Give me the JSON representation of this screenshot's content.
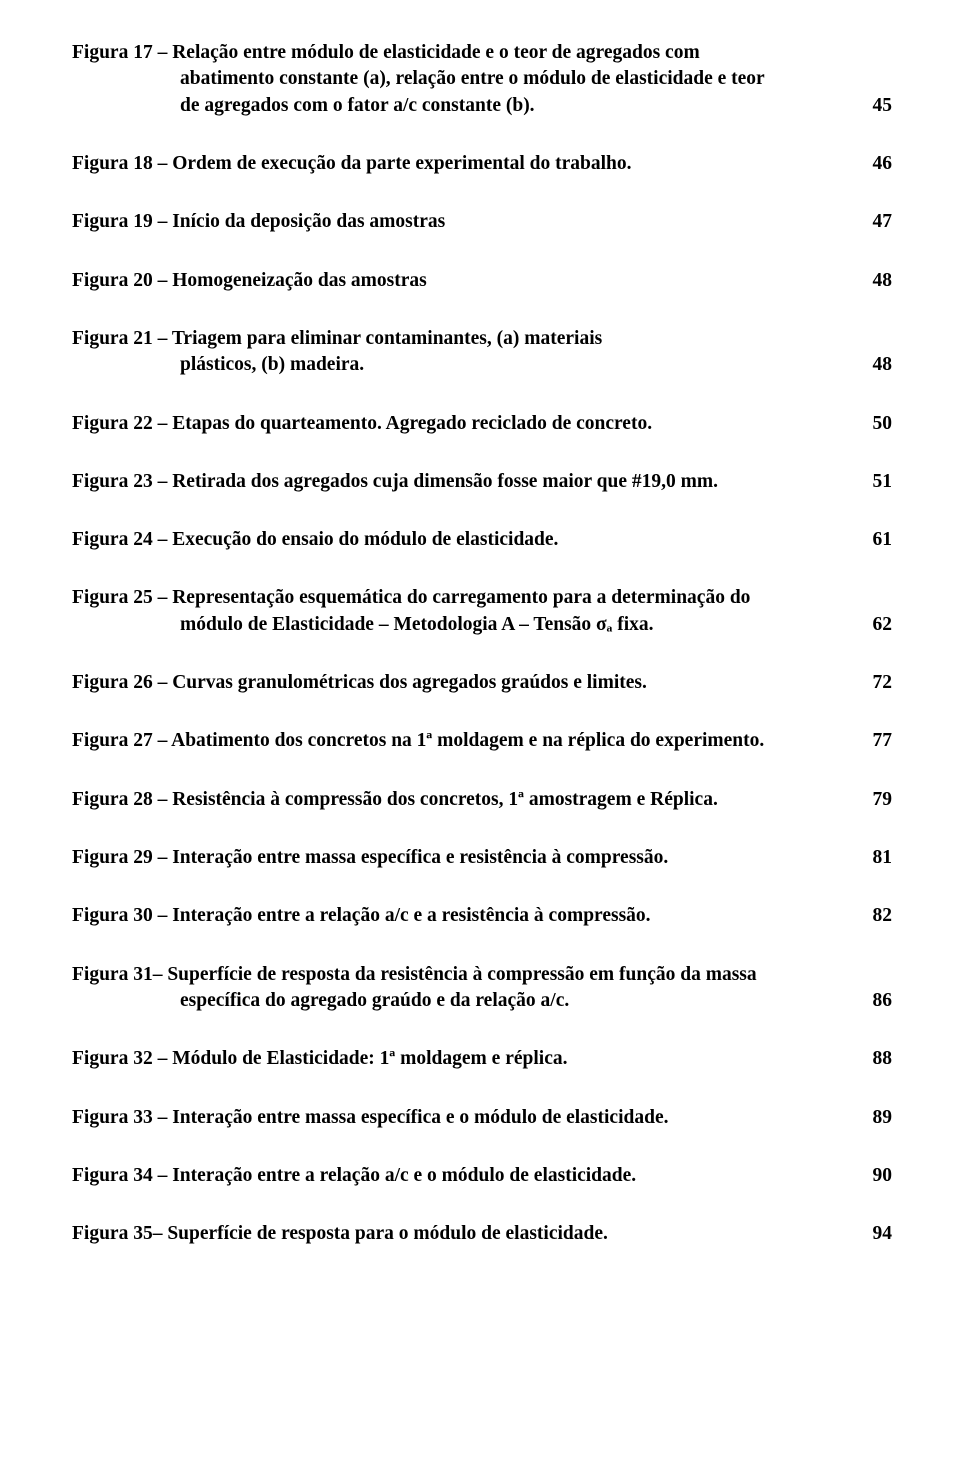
{
  "entries": [
    {
      "line1": "Figura 17 – Relação entre módulo de elasticidade  e  o teor   de agregados   com",
      "line2": "abatimento constante (a), relação entre o módulo de elasticidade e teor",
      "line3": "de agregados com o fator a/c constante (b).",
      "page": "45"
    },
    {
      "line1": "Figura 18 – Ordem de execução da parte experimental do trabalho.",
      "page": "46"
    },
    {
      "line1": "Figura 19 – Início da deposição das amostras",
      "page": "47"
    },
    {
      "line1": "Figura 20 – Homogeneização das amostras",
      "page": "48"
    },
    {
      "line1": "Figura 21 – Triagem para eliminar contaminantes, (a) materiais",
      "line2": "plásticos, (b) madeira.",
      "page": "48"
    },
    {
      "line1": "Figura 22 – Etapas do quarteamento. Agregado reciclado de concreto.",
      "page": "50"
    },
    {
      "line1": "Figura 23 – Retirada dos agregados cuja dimensão fosse maior que #19,0 mm.",
      "page": "51"
    },
    {
      "line1": "Figura 24 – Execução do ensaio do módulo de elasticidade.",
      "page": "61"
    },
    {
      "line1": "Figura 25 – Representação esquemática do carregamento para a determinação do",
      "line2": "módulo de Elasticidade – Metodologia A – Tensão σₐ fixa.",
      "page": "62"
    },
    {
      "line1": "Figura 26 – Curvas granulométricas dos agregados graúdos e limites.",
      "page": "72"
    },
    {
      "line1": "Figura 27 – Abatimento dos concretos na 1ª moldagem e na réplica do experimento.",
      "page": "77"
    },
    {
      "line1": "Figura 28 – Resistência à compressão dos concretos, 1ª amostragem e Réplica.",
      "page": "79"
    },
    {
      "line1": "Figura 29 – Interação entre massa específica e resistência à compressão.",
      "page": "81"
    },
    {
      "line1": "Figura 30 – Interação entre a relação a/c e a resistência à compressão.",
      "page": "82"
    },
    {
      "line1": "Figura 31– Superfície de resposta da resistência à compressão em função da massa",
      "line2": "específica do agregado graúdo e da relação a/c.",
      "page": "86"
    },
    {
      "line1": "Figura 32 – Módulo de Elasticidade: 1ª moldagem e réplica.",
      "page": "88"
    },
    {
      "line1": "Figura 33 – Interação entre massa específica e o módulo de elasticidade.",
      "page": "89"
    },
    {
      "line1": "Figura 34 – Interação entre a relação a/c e o módulo de elasticidade.",
      "page": "90"
    },
    {
      "line1": "Figura 35– Superfície de resposta para o módulo de elasticidade.",
      "page": "94"
    }
  ]
}
